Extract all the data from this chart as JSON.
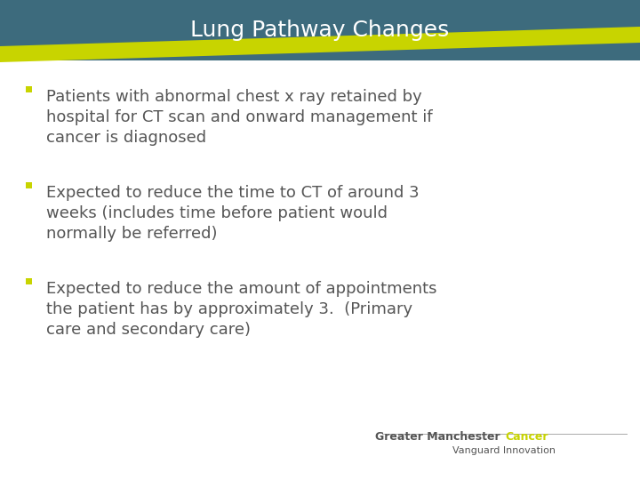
{
  "title": "Lung Pathway Changes",
  "title_color": "#ffffff",
  "title_bg_color": "#3d6b7d",
  "title_fontsize": 18,
  "yellow_stripe_color": "#c8d400",
  "bg_color": "#ffffff",
  "bullet_color": "#c8d400",
  "text_color": "#555555",
  "bullet_points": [
    "Patients with abnormal chest x ray retained by\nhospital for CT scan and onward management if\ncancer is diagnosed",
    "Expected to reduce the time to CT of around 3\nweeks (includes time before patient would\nnormally be referred)",
    "Expected to reduce the amount of appointments\nthe patient has by approximately 3.  (Primary\ncare and secondary care)"
  ],
  "footer_left": "Greater Manchester ",
  "footer_right": "Cancer",
  "footer_sub": "Vanguard Innovation",
  "footer_color": "#555555",
  "footer_accent_color": "#c8d400",
  "footer_fontsize": 9,
  "footer_sub_fontsize": 8,
  "text_fontsize": 13
}
